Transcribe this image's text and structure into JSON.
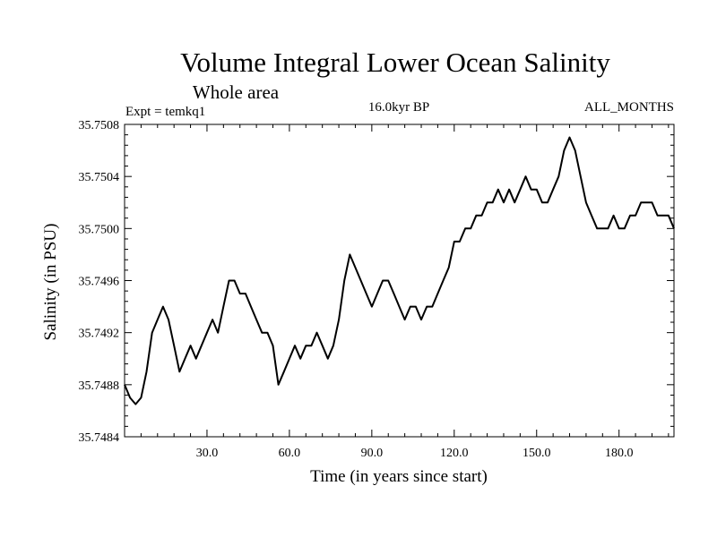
{
  "chart_data": {
    "type": "line",
    "title": "Volume Integral Lower Ocean Salinity",
    "subtitle": "Whole area",
    "left_label": "Expt = temkq1",
    "center_label": "16.0kyr BP",
    "right_label": "ALL_MONTHS",
    "xlabel": "Time (in years since start)",
    "ylabel": "Salinity (in PSU)",
    "xlim": [
      0,
      200
    ],
    "ylim": [
      35.7484,
      35.7508
    ],
    "x_ticks": [
      30,
      60,
      90,
      120,
      150,
      180
    ],
    "x_tick_labels": [
      "30.0",
      "60.0",
      "90.0",
      "120.0",
      "150.0",
      "180.0"
    ],
    "y_ticks": [
      35.7484,
      35.7488,
      35.7492,
      35.7496,
      35.75,
      35.7504,
      35.7508
    ],
    "y_tick_labels": [
      "35.7484",
      "35.7488",
      "35.7492",
      "35.7496",
      "35.7500",
      "35.7504",
      "35.7508"
    ],
    "grid": false,
    "series": [
      {
        "name": "salinity",
        "points": [
          [
            0,
            35.7488
          ],
          [
            2,
            35.7487
          ],
          [
            4,
            35.74865
          ],
          [
            6,
            35.7487
          ],
          [
            8,
            35.7489
          ],
          [
            10,
            35.7492
          ],
          [
            12,
            35.7493
          ],
          [
            14,
            35.7494
          ],
          [
            16,
            35.7493
          ],
          [
            18,
            35.7491
          ],
          [
            20,
            35.7489
          ],
          [
            22,
            35.749
          ],
          [
            24,
            35.7491
          ],
          [
            26,
            35.749
          ],
          [
            28,
            35.7491
          ],
          [
            30,
            35.7492
          ],
          [
            32,
            35.7493
          ],
          [
            34,
            35.7492
          ],
          [
            36,
            35.7494
          ],
          [
            38,
            35.7496
          ],
          [
            40,
            35.7496
          ],
          [
            42,
            35.7495
          ],
          [
            44,
            35.7495
          ],
          [
            46,
            35.7494
          ],
          [
            48,
            35.7493
          ],
          [
            50,
            35.7492
          ],
          [
            52,
            35.7492
          ],
          [
            54,
            35.7491
          ],
          [
            56,
            35.7488
          ],
          [
            58,
            35.7489
          ],
          [
            60,
            35.749
          ],
          [
            62,
            35.7491
          ],
          [
            64,
            35.749
          ],
          [
            66,
            35.7491
          ],
          [
            68,
            35.7491
          ],
          [
            70,
            35.7492
          ],
          [
            72,
            35.7491
          ],
          [
            74,
            35.749
          ],
          [
            76,
            35.7491
          ],
          [
            78,
            35.7493
          ],
          [
            80,
            35.7496
          ],
          [
            82,
            35.7498
          ],
          [
            84,
            35.7497
          ],
          [
            86,
            35.7496
          ],
          [
            88,
            35.7495
          ],
          [
            90,
            35.7494
          ],
          [
            92,
            35.7495
          ],
          [
            94,
            35.7496
          ],
          [
            96,
            35.7496
          ],
          [
            98,
            35.7495
          ],
          [
            100,
            35.7494
          ],
          [
            102,
            35.7493
          ],
          [
            104,
            35.7494
          ],
          [
            106,
            35.7494
          ],
          [
            108,
            35.7493
          ],
          [
            110,
            35.7494
          ],
          [
            112,
            35.7494
          ],
          [
            114,
            35.7495
          ],
          [
            116,
            35.7496
          ],
          [
            118,
            35.7497
          ],
          [
            120,
            35.7499
          ],
          [
            122,
            35.7499
          ],
          [
            124,
            35.75
          ],
          [
            126,
            35.75
          ],
          [
            128,
            35.7501
          ],
          [
            130,
            35.7501
          ],
          [
            132,
            35.7502
          ],
          [
            134,
            35.7502
          ],
          [
            136,
            35.7503
          ],
          [
            138,
            35.7502
          ],
          [
            140,
            35.7503
          ],
          [
            142,
            35.7502
          ],
          [
            144,
            35.7503
          ],
          [
            146,
            35.7504
          ],
          [
            148,
            35.7503
          ],
          [
            150,
            35.7503
          ],
          [
            152,
            35.7502
          ],
          [
            154,
            35.7502
          ],
          [
            156,
            35.7503
          ],
          [
            158,
            35.7504
          ],
          [
            160,
            35.7506
          ],
          [
            162,
            35.7507
          ],
          [
            164,
            35.7506
          ],
          [
            166,
            35.7504
          ],
          [
            168,
            35.7502
          ],
          [
            170,
            35.7501
          ],
          [
            172,
            35.75
          ],
          [
            174,
            35.75
          ],
          [
            176,
            35.75
          ],
          [
            178,
            35.7501
          ],
          [
            180,
            35.75
          ],
          [
            182,
            35.75
          ],
          [
            184,
            35.7501
          ],
          [
            186,
            35.7501
          ],
          [
            188,
            35.7502
          ],
          [
            190,
            35.7502
          ],
          [
            192,
            35.7502
          ],
          [
            194,
            35.7501
          ],
          [
            196,
            35.7501
          ],
          [
            198,
            35.7501
          ],
          [
            200,
            35.75
          ]
        ]
      }
    ]
  }
}
